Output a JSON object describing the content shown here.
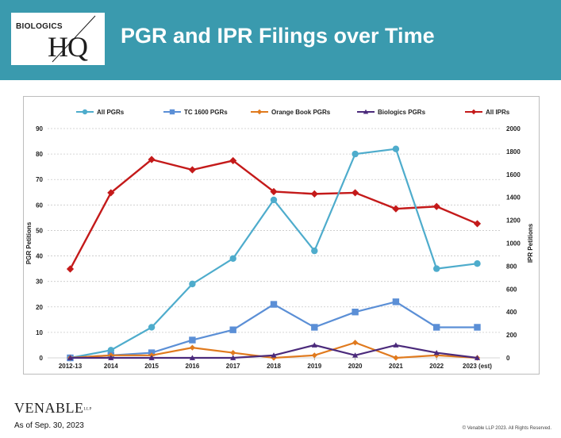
{
  "header": {
    "logo_small": "BIOLOGICS",
    "logo_big": "HQ",
    "title": "PGR and IPR Filings over Time",
    "background_color": "#3a9aae"
  },
  "footer": {
    "firm_logo": "VENABLE",
    "firm_logo_suffix": "LLP",
    "date_note": "As of Sep. 30, 2023",
    "copyright": "© Venable LLP 2023. All Rights Reserved."
  },
  "chart_data": {
    "type": "line",
    "categories": [
      "2012-13",
      "2014",
      "2015",
      "2016",
      "2017",
      "2018",
      "2019",
      "2020",
      "2021",
      "2022",
      "2023 (est)"
    ],
    "ylabel": "PGR Petitions",
    "y2label": "IPR Petitions",
    "ylim": [
      0,
      90
    ],
    "yticks": [
      0,
      10,
      20,
      30,
      40,
      50,
      60,
      70,
      80,
      90
    ],
    "y2lim": [
      0,
      2000
    ],
    "y2ticks": [
      0,
      200,
      400,
      600,
      800,
      1000,
      1200,
      1400,
      1600,
      1800,
      2000
    ],
    "grid": true,
    "legend_position": "top",
    "series": [
      {
        "name": "All PGRs",
        "axis": "left",
        "color": "#4eaccc",
        "marker": "circle",
        "values": [
          0,
          3,
          12,
          29,
          39,
          62,
          42,
          80,
          82,
          35,
          37
        ]
      },
      {
        "name": "TC 1600 PGRs",
        "axis": "left",
        "color": "#5b8fd6",
        "marker": "square",
        "values": [
          0,
          1,
          2,
          7,
          11,
          21,
          12,
          18,
          22,
          12,
          12
        ]
      },
      {
        "name": "Orange Book PGRs",
        "axis": "left",
        "color": "#e07a1e",
        "marker": "diamond",
        "values": [
          0,
          1,
          1,
          4,
          2,
          0,
          1,
          6,
          0,
          1,
          0
        ]
      },
      {
        "name": "Biologics PGRs",
        "axis": "left",
        "color": "#4b2a7b",
        "marker": "triangle",
        "values": [
          0,
          0,
          0,
          0,
          0,
          1,
          5,
          1,
          5,
          2,
          0
        ]
      },
      {
        "name": "All IPRs",
        "axis": "right",
        "color": "#c41a1a",
        "marker": "diamond",
        "values": [
          775,
          1440,
          1730,
          1640,
          1720,
          1450,
          1430,
          1440,
          1300,
          1320,
          1170
        ]
      }
    ]
  }
}
